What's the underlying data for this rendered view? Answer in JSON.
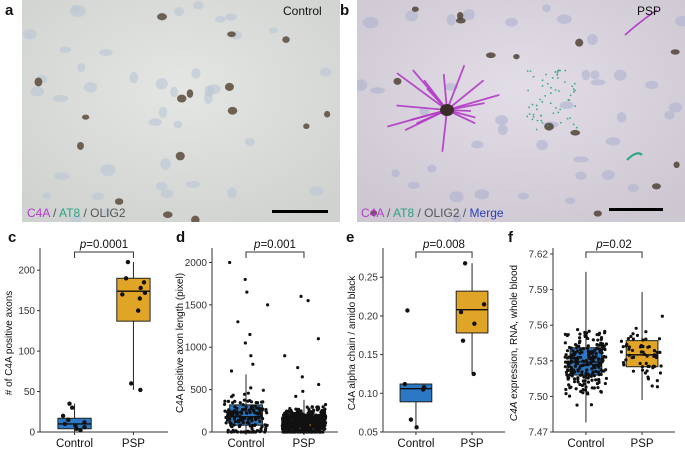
{
  "panels": {
    "a": {
      "letter": "a",
      "condition": "Control",
      "stain_c4a": "C4A",
      "stain_at8": "AT8",
      "stain_olig2": "OLIG2",
      "sep": " / ",
      "colors": {
        "c4a": "#b43bc8",
        "at8": "#2aa383",
        "olig2": "#555555"
      }
    },
    "b": {
      "letter": "b",
      "condition": "PSP",
      "stain_c4a": "C4A",
      "stain_at8": "AT8",
      "stain_olig2": "OLIG2",
      "stain_merge": "Merge",
      "sep": " / ",
      "colors": {
        "c4a": "#b43bc8",
        "at8": "#2aa383",
        "olig2": "#555555",
        "merge": "#2a3fb8"
      }
    }
  },
  "chart_data": [
    {
      "letter": "c",
      "type": "boxplot",
      "ylabel": "# of C4A positive axons",
      "ylim": [
        0,
        220
      ],
      "yticks": [
        0,
        50,
        100,
        150,
        200
      ],
      "categories": [
        "Control",
        "PSP"
      ],
      "p_label": "p",
      "p_value": "=0.0001",
      "boxes": [
        {
          "name": "Control",
          "color": "#2b78c5",
          "q1": 4,
          "median": 10,
          "q3": 17,
          "whisker_low": 0,
          "whisker_high": 35,
          "points": [
            2,
            4,
            6,
            8,
            10,
            12,
            15,
            20,
            30,
            35
          ]
        },
        {
          "name": "PSP",
          "color": "#e0a526",
          "q1": 137,
          "median": 174,
          "q3": 190,
          "whisker_low": 52,
          "whisker_high": 210,
          "points": [
            52,
            60,
            150,
            165,
            170,
            172,
            178,
            185,
            190,
            210
          ]
        }
      ]
    },
    {
      "letter": "d",
      "type": "boxplot",
      "ylabel": "C4A positive axon length (pixel)",
      "ylim": [
        0,
        2100
      ],
      "yticks": [
        0,
        500,
        1000,
        1500,
        2000
      ],
      "categories": [
        "Control",
        "PSP"
      ],
      "p_label": "p",
      "p_value": "=0.001",
      "boxes": [
        {
          "name": "Control",
          "color": "#2b78c5",
          "q1": 80,
          "median": 180,
          "q3": 320,
          "whisker_low": 0,
          "whisker_high": 680,
          "n_points": 160,
          "outliers": [
            720,
            800,
            900,
            1050,
            1150,
            1300,
            1500,
            1650,
            1800,
            2000
          ]
        },
        {
          "name": "PSP",
          "color": "#e0a526",
          "q1": 60,
          "median": 110,
          "q3": 190,
          "whisker_low": 0,
          "whisker_high": 380,
          "n_points": 500,
          "outliers": [
            420,
            480,
            560,
            650,
            760,
            900,
            1100,
            1550,
            1600
          ]
        }
      ]
    },
    {
      "letter": "e",
      "type": "boxplot",
      "ylabel": "C4A alpha chain / amido black",
      "ylim": [
        0.05,
        0.28
      ],
      "yticks": [
        0.05,
        0.1,
        0.15,
        0.2,
        0.25
      ],
      "ytick_labels": [
        "0.05",
        "0.10",
        "0.15",
        "0.20",
        "0.25"
      ],
      "categories": [
        "Control",
        "PSP"
      ],
      "p_label": "p",
      "p_value": "=0.008",
      "boxes": [
        {
          "name": "Control",
          "color": "#2b78c5",
          "q1": 0.089,
          "median": 0.106,
          "q3": 0.112,
          "whisker_low": 0.056,
          "whisker_high": 0.113,
          "points": [
            0.056,
            0.066,
            0.105,
            0.108,
            0.112,
            0.207
          ]
        },
        {
          "name": "PSP",
          "color": "#e0a526",
          "q1": 0.178,
          "median": 0.208,
          "q3": 0.232,
          "whisker_low": 0.125,
          "whisker_high": 0.268,
          "points": [
            0.125,
            0.168,
            0.19,
            0.205,
            0.215,
            0.268
          ]
        }
      ]
    },
    {
      "letter": "f",
      "type": "boxplot",
      "ylabel_italic": "C4A",
      "ylabel_rest": " expression, RNA, whole blood",
      "ylim": [
        7.47,
        7.62
      ],
      "yticks": [
        7.47,
        7.5,
        7.53,
        7.56,
        7.59,
        7.62
      ],
      "ytick_labels": [
        "7.47",
        "7.50",
        "7.53",
        "7.56",
        "7.59",
        "7.62"
      ],
      "categories": [
        "Control",
        "PSP"
      ],
      "p_label": "p",
      "p_value": "=0.02",
      "boxes": [
        {
          "name": "Control",
          "color": "#2b78c5",
          "q1": 7.518,
          "median": 7.529,
          "q3": 7.541,
          "whisker_low": 7.478,
          "whisker_high": 7.605,
          "n_points": 230
        },
        {
          "name": "PSP",
          "color": "#e0a526",
          "q1": 7.525,
          "median": 7.535,
          "q3": 7.547,
          "whisker_low": 7.497,
          "whisker_high": 7.588,
          "n_points": 60
        }
      ]
    }
  ]
}
